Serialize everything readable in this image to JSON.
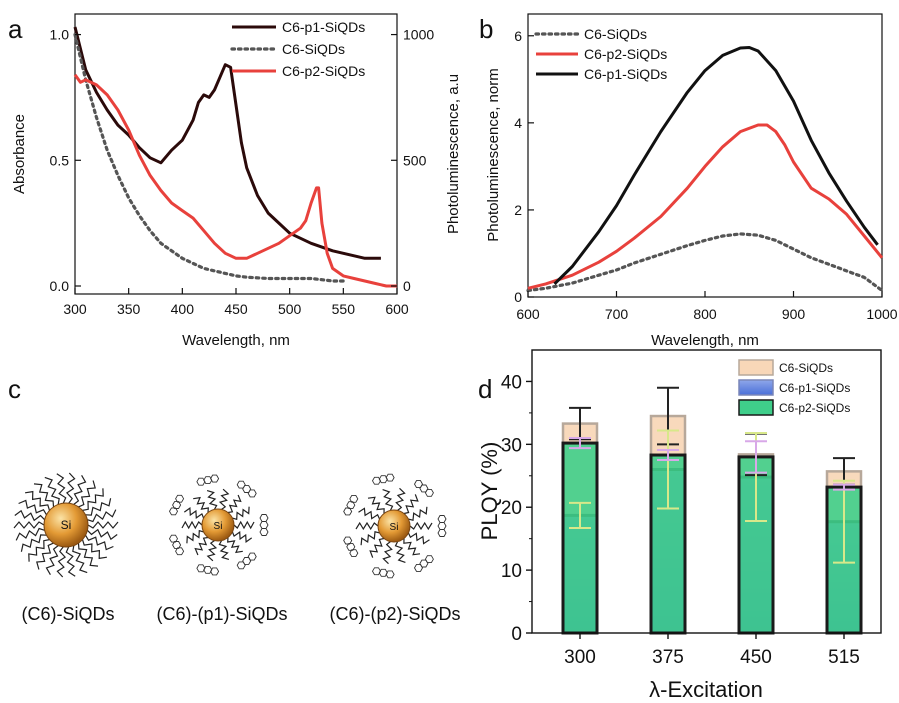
{
  "panel_labels": [
    "a",
    "b",
    "c",
    "d"
  ],
  "chart_data": [
    {
      "panel": "a",
      "type": "line",
      "xlabel": "Wavelength, nm",
      "ylabel": "Absorbance",
      "y2label": "Photoluminescence, a.u",
      "xlim": [
        300,
        600
      ],
      "ylim": [
        0,
        1.05
      ],
      "y2lim": [
        0,
        1050
      ],
      "xticks": [
        "300",
        "350",
        "400",
        "450",
        "500",
        "550",
        "600"
      ],
      "yticks": [
        "0.0",
        "0.5",
        "1.0"
      ],
      "y2ticks": [
        "0",
        "500",
        "1000"
      ],
      "legend_position": "top-right",
      "series": [
        {
          "name": "C6-p1-SiQDs",
          "axis": "left",
          "color": "#2b0a0a",
          "style": "solid",
          "x": [
            300,
            310,
            320,
            330,
            340,
            350,
            360,
            370,
            380,
            390,
            400,
            410,
            415,
            420,
            425,
            430,
            435,
            440,
            445,
            450,
            455,
            460,
            470,
            480,
            490,
            500,
            520,
            540,
            560,
            570,
            585
          ],
          "y": [
            1.03,
            0.86,
            0.77,
            0.7,
            0.64,
            0.6,
            0.55,
            0.51,
            0.49,
            0.54,
            0.58,
            0.66,
            0.73,
            0.76,
            0.75,
            0.78,
            0.83,
            0.88,
            0.87,
            0.72,
            0.57,
            0.47,
            0.36,
            0.29,
            0.25,
            0.21,
            0.17,
            0.14,
            0.12,
            0.11,
            0.11
          ]
        },
        {
          "name": "C6-SiQDs",
          "axis": "left",
          "color": "#555555",
          "style": "dotted",
          "x": [
            300,
            310,
            320,
            330,
            340,
            350,
            360,
            370,
            380,
            390,
            400,
            410,
            420,
            430,
            440,
            450,
            460,
            480,
            500,
            520,
            530,
            540,
            550
          ],
          "y": [
            1.0,
            0.82,
            0.67,
            0.54,
            0.44,
            0.35,
            0.28,
            0.22,
            0.17,
            0.14,
            0.11,
            0.09,
            0.07,
            0.06,
            0.05,
            0.04,
            0.035,
            0.03,
            0.03,
            0.03,
            0.025,
            0.02,
            0.02
          ]
        },
        {
          "name": "C6-p2-SiQDs",
          "axis": "right",
          "color": "#e8413c",
          "style": "solid",
          "x": [
            300,
            305,
            310,
            320,
            330,
            340,
            350,
            360,
            370,
            380,
            390,
            400,
            410,
            420,
            430,
            440,
            450,
            460,
            470,
            480,
            490,
            500,
            510,
            515,
            520,
            525,
            527,
            530,
            535,
            540,
            550,
            560,
            570,
            580,
            590,
            600
          ],
          "y": [
            840,
            810,
            820,
            800,
            760,
            700,
            620,
            520,
            440,
            380,
            330,
            300,
            270,
            220,
            170,
            130,
            110,
            110,
            130,
            150,
            170,
            200,
            230,
            260,
            330,
            390,
            390,
            250,
            130,
            70,
            40,
            30,
            20,
            10,
            0,
            0
          ]
        }
      ]
    },
    {
      "panel": "b",
      "type": "line",
      "xlabel": "Wavelength, nm",
      "ylabel": "Photoluminescence, norm",
      "xlim": [
        600,
        1000
      ],
      "ylim": [
        0,
        6.5
      ],
      "xticks": [
        "600",
        "700",
        "800",
        "900",
        "1000"
      ],
      "yticks": [
        "0",
        "2",
        "4",
        "6"
      ],
      "legend_position": "top-left",
      "series": [
        {
          "name": "C6-SiQDs",
          "color": "#555555",
          "style": "dotted",
          "x": [
            600,
            620,
            650,
            680,
            700,
            720,
            750,
            780,
            800,
            820,
            840,
            860,
            880,
            900,
            920,
            940,
            960,
            980,
            1000
          ],
          "y": [
            0.15,
            0.2,
            0.32,
            0.5,
            0.62,
            0.78,
            0.98,
            1.18,
            1.3,
            1.4,
            1.45,
            1.42,
            1.3,
            1.1,
            0.9,
            0.75,
            0.6,
            0.45,
            0.15
          ]
        },
        {
          "name": "C6-p2-SiQDs",
          "color": "#e8413c",
          "style": "solid",
          "x": [
            600,
            620,
            650,
            680,
            700,
            720,
            750,
            780,
            800,
            820,
            840,
            860,
            870,
            880,
            890,
            900,
            920,
            940,
            960,
            980,
            1000
          ],
          "y": [
            0.2,
            0.3,
            0.5,
            0.8,
            1.05,
            1.35,
            1.85,
            2.5,
            3.0,
            3.45,
            3.8,
            3.95,
            3.95,
            3.8,
            3.5,
            3.1,
            2.5,
            2.25,
            1.9,
            1.4,
            0.9
          ]
        },
        {
          "name": "C6-p1-SiQDs",
          "color": "#111111",
          "style": "solid",
          "x": [
            630,
            650,
            680,
            700,
            720,
            750,
            780,
            800,
            820,
            840,
            850,
            860,
            880,
            900,
            920,
            940,
            960,
            980,
            995
          ],
          "y": [
            0.3,
            0.7,
            1.5,
            2.1,
            2.8,
            3.8,
            4.7,
            5.2,
            5.55,
            5.72,
            5.73,
            5.65,
            5.2,
            4.5,
            3.6,
            2.85,
            2.2,
            1.6,
            1.2
          ]
        }
      ]
    },
    {
      "panel": "d",
      "type": "bar",
      "xlabel": "λ-Excitation",
      "ylabel": "PLQY (%)",
      "ylim": [
        0,
        45
      ],
      "yticks": [
        "0",
        "10",
        "20",
        "30",
        "40"
      ],
      "categories": [
        "300",
        "375",
        "450",
        "515"
      ],
      "legend_position": "top-right",
      "series": [
        {
          "name": "C6-SiQDs",
          "color": "#f8d7b8",
          "values": [
            33.3,
            34.5,
            28.4,
            25.7
          ],
          "err": [
            2.5,
            4.5,
            3.3,
            2.1
          ],
          "err_color": "#222222"
        },
        {
          "name": "C6-p1-SiQDs",
          "color": "#3a6fd8",
          "values": [
            18.7,
            26.0,
            24.8,
            17.7
          ],
          "err": [
            2.0,
            6.2,
            7.0,
            6.5
          ],
          "err_color": "#d8e88a"
        },
        {
          "name": "C6-p2-SiQDs",
          "color": "#3fce8a",
          "values": [
            30.2,
            28.3,
            28.0,
            23.2
          ],
          "err": [
            0.8,
            0.8,
            2.5,
            0.4
          ],
          "err_color": "#d8a8e8"
        }
      ]
    }
  ],
  "schematic": {
    "core_label": "Si",
    "particles": [
      {
        "label": "(C6)-SiQDs"
      },
      {
        "label": "(C6)-(p1)-SiQDs"
      },
      {
        "label": "(C6)-(p2)-SiQDs"
      }
    ]
  },
  "colors": {
    "core_light": "#fbe3a6",
    "core_dark": "#b8701a"
  }
}
